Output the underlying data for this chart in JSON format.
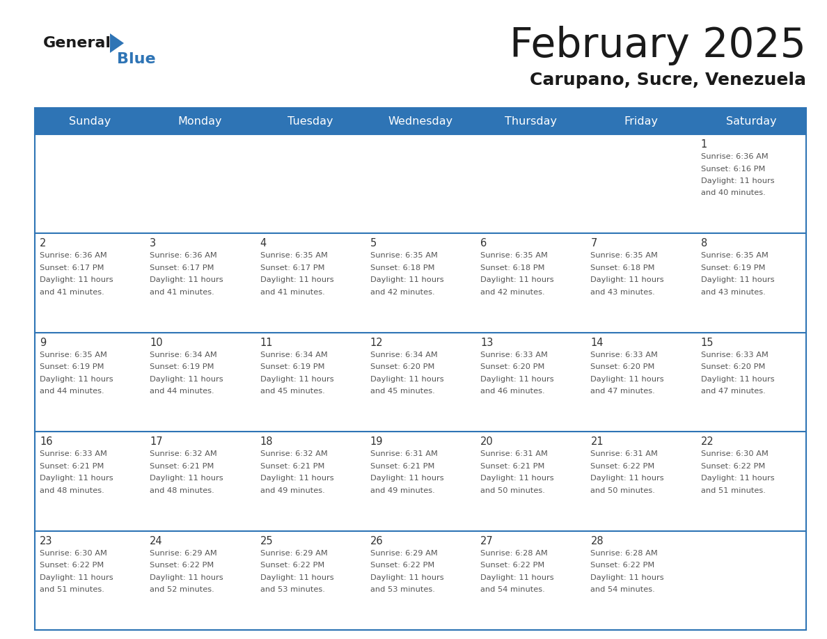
{
  "title": "February 2025",
  "subtitle": "Carupano, Sucre, Venezuela",
  "header_bg": "#2E74B5",
  "header_text_color": "#FFFFFF",
  "day_names": [
    "Sunday",
    "Monday",
    "Tuesday",
    "Wednesday",
    "Thursday",
    "Friday",
    "Saturday"
  ],
  "bg_color": "#FFFFFF",
  "grid_line_color": "#2E74B5",
  "text_color": "#333333",
  "info_text_color": "#555555",
  "logo_general_color": "#1a1a1a",
  "logo_blue_color": "#2E74B5",
  "calendar": [
    [
      null,
      null,
      null,
      null,
      null,
      null,
      {
        "day": 1,
        "sunrise": "6:36 AM",
        "sunset": "6:16 PM",
        "daylight": "11 hours and 40 minutes."
      }
    ],
    [
      {
        "day": 2,
        "sunrise": "6:36 AM",
        "sunset": "6:17 PM",
        "daylight": "11 hours and 41 minutes."
      },
      {
        "day": 3,
        "sunrise": "6:36 AM",
        "sunset": "6:17 PM",
        "daylight": "11 hours and 41 minutes."
      },
      {
        "day": 4,
        "sunrise": "6:35 AM",
        "sunset": "6:17 PM",
        "daylight": "11 hours and 41 minutes."
      },
      {
        "day": 5,
        "sunrise": "6:35 AM",
        "sunset": "6:18 PM",
        "daylight": "11 hours and 42 minutes."
      },
      {
        "day": 6,
        "sunrise": "6:35 AM",
        "sunset": "6:18 PM",
        "daylight": "11 hours and 42 minutes."
      },
      {
        "day": 7,
        "sunrise": "6:35 AM",
        "sunset": "6:18 PM",
        "daylight": "11 hours and 43 minutes."
      },
      {
        "day": 8,
        "sunrise": "6:35 AM",
        "sunset": "6:19 PM",
        "daylight": "11 hours and 43 minutes."
      }
    ],
    [
      {
        "day": 9,
        "sunrise": "6:35 AM",
        "sunset": "6:19 PM",
        "daylight": "11 hours and 44 minutes."
      },
      {
        "day": 10,
        "sunrise": "6:34 AM",
        "sunset": "6:19 PM",
        "daylight": "11 hours and 44 minutes."
      },
      {
        "day": 11,
        "sunrise": "6:34 AM",
        "sunset": "6:19 PM",
        "daylight": "11 hours and 45 minutes."
      },
      {
        "day": 12,
        "sunrise": "6:34 AM",
        "sunset": "6:20 PM",
        "daylight": "11 hours and 45 minutes."
      },
      {
        "day": 13,
        "sunrise": "6:33 AM",
        "sunset": "6:20 PM",
        "daylight": "11 hours and 46 minutes."
      },
      {
        "day": 14,
        "sunrise": "6:33 AM",
        "sunset": "6:20 PM",
        "daylight": "11 hours and 47 minutes."
      },
      {
        "day": 15,
        "sunrise": "6:33 AM",
        "sunset": "6:20 PM",
        "daylight": "11 hours and 47 minutes."
      }
    ],
    [
      {
        "day": 16,
        "sunrise": "6:33 AM",
        "sunset": "6:21 PM",
        "daylight": "11 hours and 48 minutes."
      },
      {
        "day": 17,
        "sunrise": "6:32 AM",
        "sunset": "6:21 PM",
        "daylight": "11 hours and 48 minutes."
      },
      {
        "day": 18,
        "sunrise": "6:32 AM",
        "sunset": "6:21 PM",
        "daylight": "11 hours and 49 minutes."
      },
      {
        "day": 19,
        "sunrise": "6:31 AM",
        "sunset": "6:21 PM",
        "daylight": "11 hours and 49 minutes."
      },
      {
        "day": 20,
        "sunrise": "6:31 AM",
        "sunset": "6:21 PM",
        "daylight": "11 hours and 50 minutes."
      },
      {
        "day": 21,
        "sunrise": "6:31 AM",
        "sunset": "6:22 PM",
        "daylight": "11 hours and 50 minutes."
      },
      {
        "day": 22,
        "sunrise": "6:30 AM",
        "sunset": "6:22 PM",
        "daylight": "11 hours and 51 minutes."
      }
    ],
    [
      {
        "day": 23,
        "sunrise": "6:30 AM",
        "sunset": "6:22 PM",
        "daylight": "11 hours and 51 minutes."
      },
      {
        "day": 24,
        "sunrise": "6:29 AM",
        "sunset": "6:22 PM",
        "daylight": "11 hours and 52 minutes."
      },
      {
        "day": 25,
        "sunrise": "6:29 AM",
        "sunset": "6:22 PM",
        "daylight": "11 hours and 53 minutes."
      },
      {
        "day": 26,
        "sunrise": "6:29 AM",
        "sunset": "6:22 PM",
        "daylight": "11 hours and 53 minutes."
      },
      {
        "day": 27,
        "sunrise": "6:28 AM",
        "sunset": "6:22 PM",
        "daylight": "11 hours and 54 minutes."
      },
      {
        "day": 28,
        "sunrise": "6:28 AM",
        "sunset": "6:22 PM",
        "daylight": "11 hours and 54 minutes."
      },
      null
    ]
  ]
}
